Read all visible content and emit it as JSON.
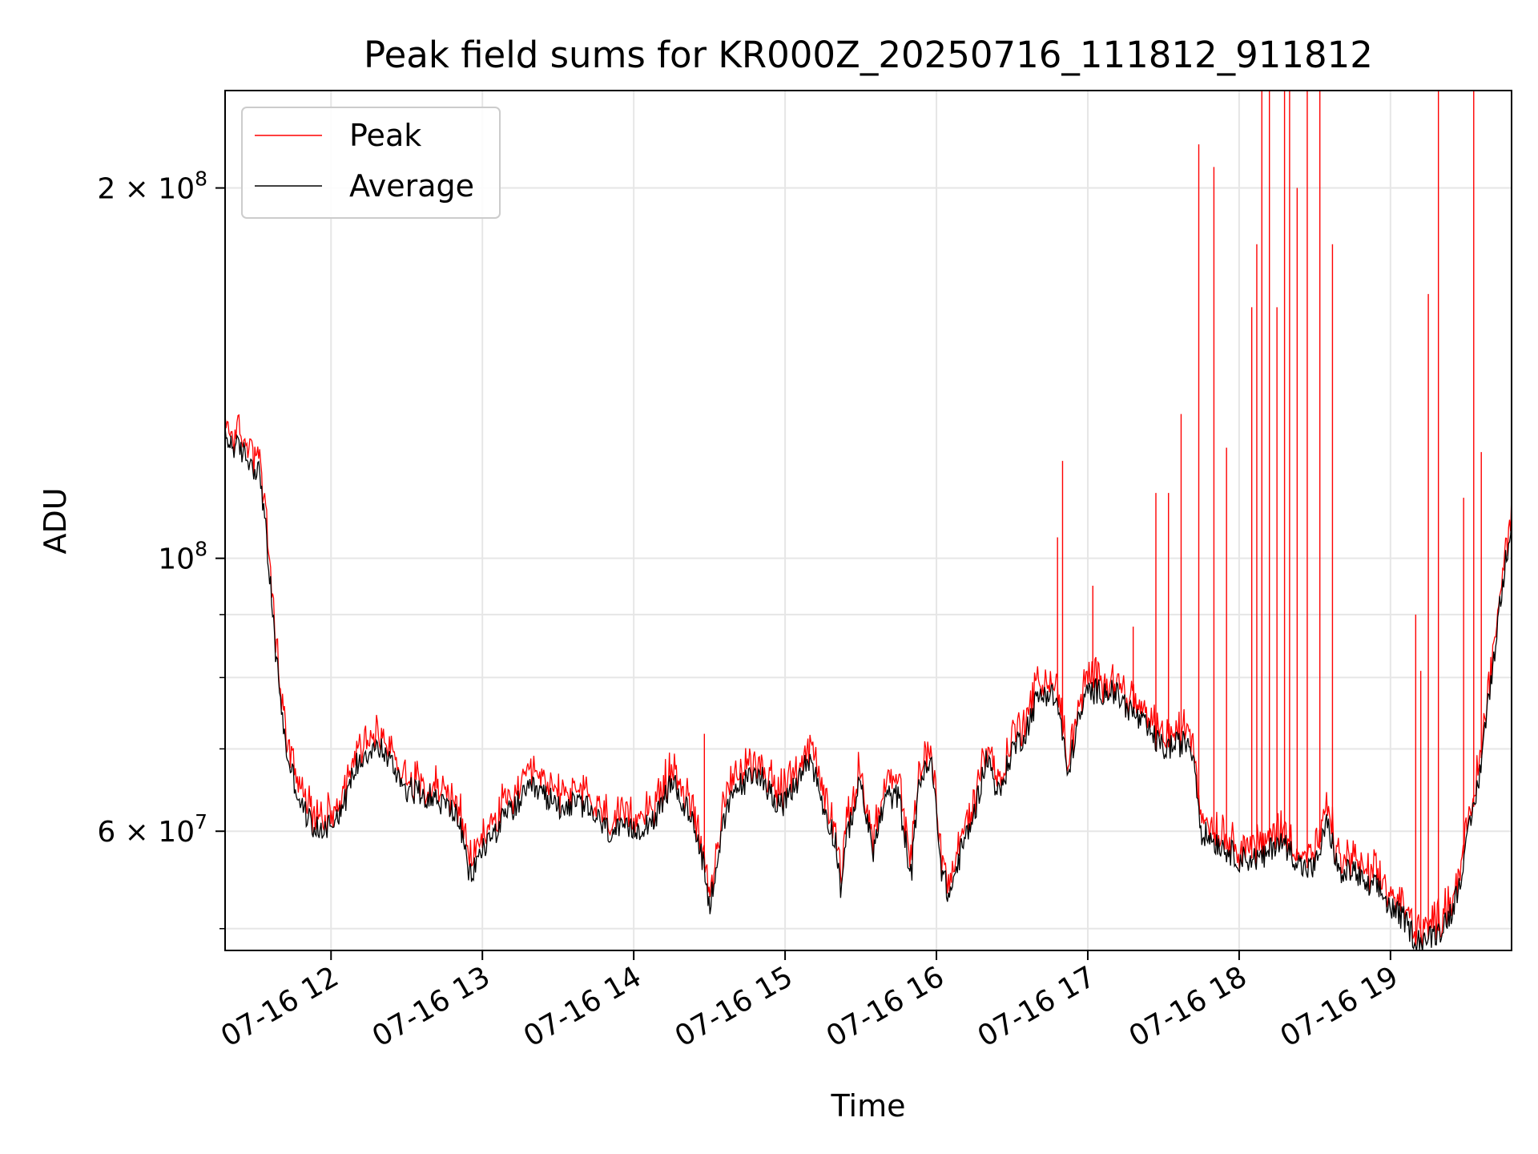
{
  "chart_data": {
    "type": "line",
    "title": "Peak field sums for KR000Z_20250716_111812_911812",
    "xlabel": "Time",
    "ylabel": "ADU",
    "yscale": "log",
    "xlim": [
      "2025-07-16T11:18",
      "2025-07-16T19:48"
    ],
    "ylim": [
      48000000,
      240000000
    ],
    "grid": true,
    "legend_position": "upper-left",
    "x_ticks": [
      {
        "t": "2025-07-16T12:00",
        "label": "07-16 12"
      },
      {
        "t": "2025-07-16T13:00",
        "label": "07-16 13"
      },
      {
        "t": "2025-07-16T14:00",
        "label": "07-16 14"
      },
      {
        "t": "2025-07-16T15:00",
        "label": "07-16 15"
      },
      {
        "t": "2025-07-16T16:00",
        "label": "07-16 16"
      },
      {
        "t": "2025-07-16T17:00",
        "label": "07-16 17"
      },
      {
        "t": "2025-07-16T18:00",
        "label": "07-16 18"
      },
      {
        "t": "2025-07-16T19:00",
        "label": "07-16 19"
      }
    ],
    "y_major_ticks": [
      {
        "value": 60000000,
        "mantissa": "6",
        "exp": "7",
        "label": "6 × 10^7"
      },
      {
        "value": 100000000,
        "mantissa": "",
        "exp": "8",
        "label": "10^8"
      },
      {
        "value": 200000000,
        "mantissa": "2",
        "exp": "8",
        "label": "2 × 10^8"
      }
    ],
    "y_minor_ticks": [
      50000000,
      70000000,
      80000000,
      90000000
    ],
    "series": [
      {
        "name": "Average",
        "color": "#000000",
        "x": [
          "11:18",
          "11:25",
          "11:32",
          "11:35",
          "11:38",
          "11:42",
          "11:48",
          "11:52",
          "11:55",
          "12:00",
          "12:05",
          "12:10",
          "12:15",
          "12:20",
          "12:30",
          "12:40",
          "12:50",
          "12:55",
          "13:00",
          "13:10",
          "13:20",
          "13:30",
          "13:40",
          "13:50",
          "14:00",
          "14:10",
          "14:15",
          "14:20",
          "14:25",
          "14:28",
          "14:30",
          "14:35",
          "14:40",
          "14:50",
          "14:55",
          "15:00",
          "15:05",
          "15:10",
          "15:15",
          "15:20",
          "15:22",
          "15:25",
          "15:30",
          "15:33",
          "15:35",
          "15:40",
          "15:45",
          "15:50",
          "15:53",
          "15:58",
          "16:02",
          "16:05",
          "16:10",
          "16:15",
          "16:20",
          "16:25",
          "16:30",
          "16:35",
          "16:40",
          "16:45",
          "16:48",
          "16:50",
          "16:52",
          "16:55",
          "17:00",
          "17:10",
          "17:20",
          "17:30",
          "17:40",
          "17:42",
          "17:45",
          "17:50",
          "17:55",
          "18:00",
          "18:05",
          "18:10",
          "18:15",
          "18:20",
          "18:25",
          "18:30",
          "18:35",
          "18:40",
          "18:45",
          "18:50",
          "18:55",
          "19:00",
          "19:05",
          "19:10",
          "19:15",
          "19:20",
          "19:25",
          "19:30",
          "19:35",
          "19:40",
          "19:45",
          "19:48"
        ],
        "y": [
          125000000,
          122000000,
          117000000,
          100000000,
          84000000,
          70000000,
          63000000,
          61000000,
          60000000,
          61000000,
          63000000,
          68000000,
          70000000,
          70000000,
          65000000,
          64000000,
          62000000,
          55000000,
          58000000,
          62000000,
          65000000,
          63000000,
          63000000,
          60000000,
          60000000,
          62000000,
          66000000,
          63000000,
          60000000,
          56000000,
          52000000,
          60000000,
          65000000,
          67000000,
          64000000,
          63000000,
          66000000,
          69000000,
          63000000,
          59000000,
          54000000,
          60000000,
          66000000,
          60000000,
          58000000,
          64000000,
          64000000,
          55000000,
          66000000,
          68000000,
          56000000,
          53000000,
          58000000,
          62000000,
          69000000,
          64000000,
          70000000,
          72000000,
          77000000,
          78000000,
          76000000,
          72000000,
          66000000,
          72000000,
          78000000,
          78000000,
          74000000,
          70000000,
          71000000,
          69000000,
          60000000,
          59000000,
          58000000,
          57000000,
          57000000,
          57000000,
          59000000,
          58000000,
          56000000,
          56000000,
          61000000,
          55000000,
          56000000,
          54000000,
          54000000,
          52000000,
          51000000,
          49000000,
          49000000,
          50000000,
          52000000,
          58000000,
          66000000,
          80000000,
          97000000,
          108000000
        ]
      },
      {
        "name": "Peak",
        "color": "#ff0000",
        "spikes": [
          {
            "x": "14:28",
            "y": 72000000
          },
          {
            "x": "16:48",
            "y": 104000000
          },
          {
            "x": "16:50",
            "y": 120000000
          },
          {
            "x": "17:02",
            "y": 95000000
          },
          {
            "x": "17:18",
            "y": 88000000
          },
          {
            "x": "17:27",
            "y": 113000000
          },
          {
            "x": "17:32",
            "y": 113000000
          },
          {
            "x": "17:37",
            "y": 131000000
          },
          {
            "x": "17:44",
            "y": 217000000
          },
          {
            "x": "17:50",
            "y": 208000000
          },
          {
            "x": "17:55",
            "y": 123000000
          },
          {
            "x": "18:05",
            "y": 160000000
          },
          {
            "x": "18:07",
            "y": 180000000
          },
          {
            "x": "18:09",
            "y": 240000000
          },
          {
            "x": "18:12",
            "y": 240000000
          },
          {
            "x": "18:15",
            "y": 160000000
          },
          {
            "x": "18:18",
            "y": 240000000
          },
          {
            "x": "18:20",
            "y": 240000000
          },
          {
            "x": "18:23",
            "y": 200000000
          },
          {
            "x": "18:27",
            "y": 240000000
          },
          {
            "x": "18:32",
            "y": 240000000
          },
          {
            "x": "18:37",
            "y": 180000000
          },
          {
            "x": "19:10",
            "y": 90000000
          },
          {
            "x": "19:12",
            "y": 81000000
          },
          {
            "x": "19:15",
            "y": 164000000
          },
          {
            "x": "19:19",
            "y": 240000000
          },
          {
            "x": "19:29",
            "y": 112000000
          },
          {
            "x": "19:33",
            "y": 240000000
          },
          {
            "x": "19:36",
            "y": 122000000
          }
        ]
      }
    ]
  }
}
